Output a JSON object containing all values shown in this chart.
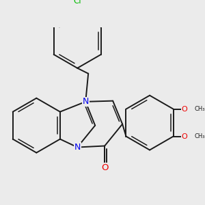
{
  "background_color": "#ebebeb",
  "bond_color": "#1a1a1a",
  "N_color": "#0000ee",
  "O_color": "#ee0000",
  "Cl_color": "#00bb00",
  "bond_width": 1.4,
  "font_size": 8.5,
  "fig_size": [
    3.0,
    3.0
  ],
  "dpi": 100,
  "xlim": [
    -2.6,
    4.2
  ],
  "ylim": [
    -0.5,
    5.8
  ]
}
